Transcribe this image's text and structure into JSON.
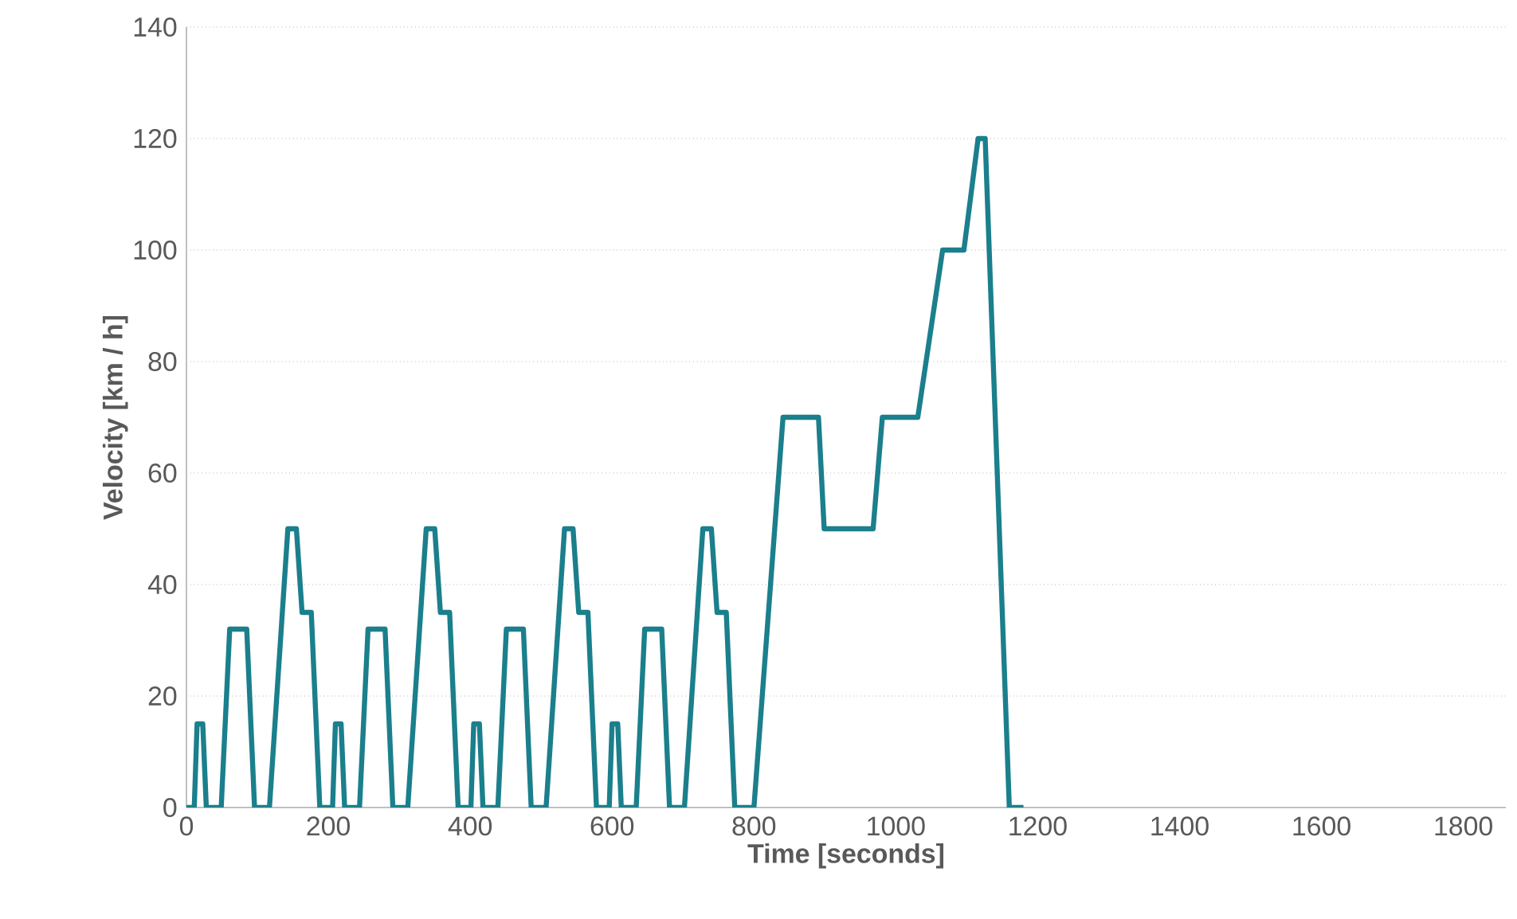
{
  "chart_data": {
    "type": "line",
    "xlabel": "Time [seconds]",
    "ylabel": "Velocity [km / h]",
    "xlim": [
      0,
      1860
    ],
    "ylim": [
      0,
      140
    ],
    "xticks": [
      0,
      200,
      400,
      600,
      800,
      1000,
      1200,
      1400,
      1600,
      1800
    ],
    "yticks": [
      0,
      20,
      40,
      60,
      80,
      100,
      120,
      140
    ],
    "grid": "y",
    "line_style": "solid",
    "series": [
      {
        "color": "#1b7f8c",
        "x": [
          0,
          11,
          15,
          23,
          28,
          49,
          61,
          85,
          96,
          117,
          143,
          155,
          163,
          176,
          188,
          195,
          206,
          210,
          218,
          223,
          244,
          256,
          280,
          291,
          312,
          338,
          350,
          358,
          371,
          383,
          390,
          401,
          405,
          413,
          418,
          439,
          451,
          475,
          486,
          507,
          533,
          545,
          553,
          566,
          578,
          585,
          596,
          600,
          608,
          613,
          634,
          646,
          670,
          681,
          702,
          728,
          740,
          748,
          761,
          773,
          780,
          800,
          841,
          891,
          899,
          968,
          981,
          1031,
          1066,
          1096,
          1116,
          1126,
          1160,
          1180
        ],
        "values": [
          0,
          0,
          15,
          15,
          0,
          0,
          32,
          32,
          0,
          0,
          50,
          50,
          35,
          35,
          0,
          0,
          0,
          15,
          15,
          0,
          0,
          32,
          32,
          0,
          0,
          50,
          50,
          35,
          35,
          0,
          0,
          0,
          15,
          15,
          0,
          0,
          32,
          32,
          0,
          0,
          50,
          50,
          35,
          35,
          0,
          0,
          0,
          15,
          15,
          0,
          0,
          32,
          32,
          0,
          0,
          50,
          50,
          35,
          35,
          0,
          0,
          0,
          70,
          70,
          50,
          50,
          70,
          70,
          100,
          100,
          120,
          120,
          0,
          0
        ]
      }
    ]
  }
}
